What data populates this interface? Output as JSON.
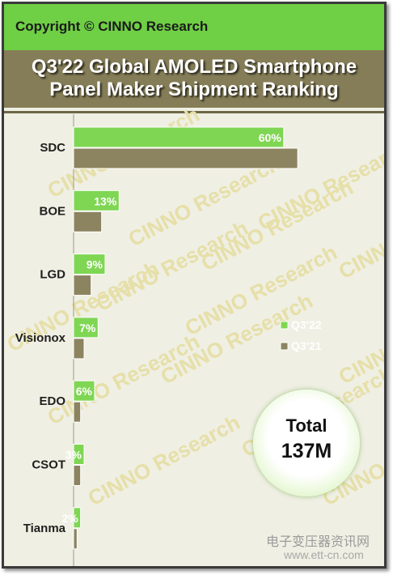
{
  "header": {
    "copyright": "Copyright © CINNO Research"
  },
  "title_lines": [
    "Q3'22 Global AMOLED Smartphone",
    "Panel Maker Shipment Ranking"
  ],
  "watermark": "CINNO Research",
  "total": {
    "label": "Total",
    "value": "137M"
  },
  "footer": {
    "site_name": "电子变压器资讯网",
    "site_url": "www.ett-cn.com"
  },
  "colors": {
    "q322": "#7fd653",
    "q321": "#8c8360",
    "background": "#efefe3",
    "title_band": "#857d57",
    "top_bar": "#6fcf45"
  },
  "chart_data": {
    "type": "bar",
    "orientation": "horizontal",
    "title": "Q3'22 Global AMOLED Smartphone Panel Maker Shipment Ranking",
    "categories": [
      "SDC",
      "BOE",
      "LGD",
      "Visionox",
      "EDO",
      "CSOT",
      "Tianma"
    ],
    "series": [
      {
        "name": "Q3'22",
        "values": [
          60,
          13,
          9,
          7,
          6,
          3,
          2
        ],
        "labels": [
          "60%",
          "13%",
          "9%",
          "7%",
          "6%",
          "3%",
          "2%"
        ]
      },
      {
        "name": "Q3'21",
        "values": [
          64,
          8,
          5,
          3,
          2,
          2,
          1
        ]
      }
    ],
    "unit": "%",
    "xlim": [
      0,
      70
    ],
    "legend_position": "right",
    "grid": false
  }
}
